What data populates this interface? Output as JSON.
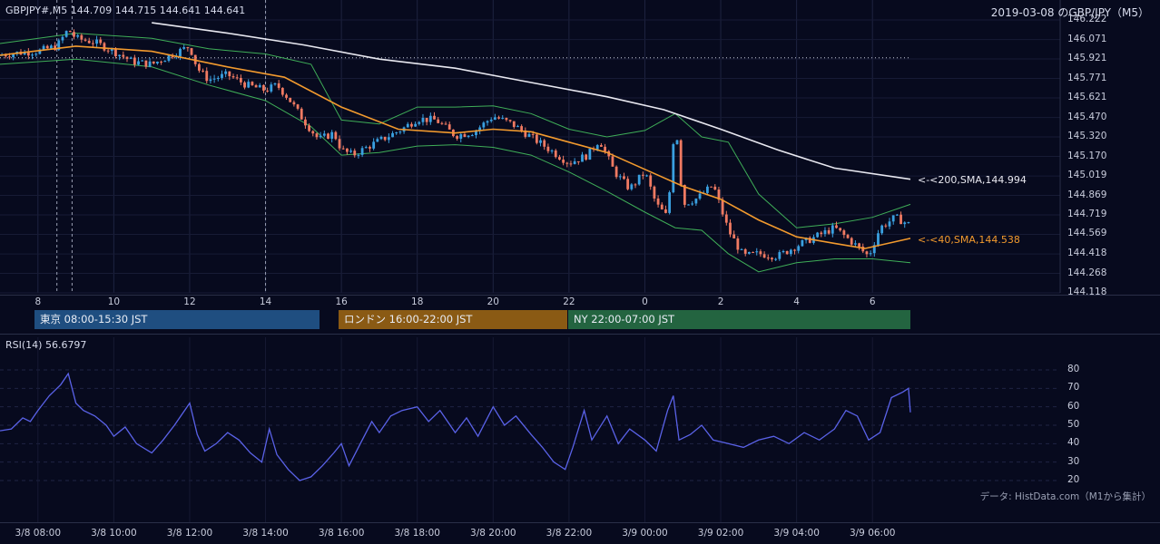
{
  "header": {
    "symbol_info": "GBPJPY#,M5 144.709 144.715 144.641 144.641",
    "title_right": "2019-03-08 のGBP/JPY（M5）"
  },
  "sessions": [
    {
      "label": "東京 08:00-15:30 JST",
      "color": "#1f4e80"
    },
    {
      "label": "ロンドン 16:00-22:00 JST",
      "color": "#8a5a14"
    },
    {
      "label": "NY 22:00-07:00 JST",
      "color": "#236440"
    }
  ],
  "rsi_panel": {
    "label": "RSI(14) 56.6797",
    "source": "データ: HistData.com（M1から集計）"
  },
  "indicator_labels": {
    "sma200": "<-<200,SMA,144.994",
    "sma40": "<-<40,SMA,144.538"
  },
  "colors": {
    "background": "#070a1e",
    "up_candle": "#3aa0e0",
    "down_candle": "#f07a62",
    "sma40": "#f29a2e",
    "sma200": "#e8e8f0",
    "bollinger": "#3fae58",
    "rsi": "#5a62e8"
  },
  "chart_data": [
    {
      "type": "candlestick",
      "title": "GBPJPY#,M5",
      "ylim": [
        144.118,
        146.222
      ],
      "y_ticks": [
        "146.222",
        "146.071",
        "145.921",
        "145.771",
        "145.621",
        "145.470",
        "145.320",
        "145.170",
        "145.019",
        "144.869",
        "144.719",
        "144.569",
        "144.418",
        "144.268",
        "144.118"
      ],
      "x_ticks": [
        "8",
        "10",
        "12",
        "14",
        "16",
        "18",
        "20",
        "22",
        "0",
        "2",
        "4",
        "6"
      ],
      "x_hours": [
        8,
        10,
        12,
        14,
        16,
        18,
        20,
        22,
        24,
        26,
        28,
        30
      ],
      "x_range_hours": [
        7.0,
        31.0
      ],
      "reference_price": 145.93,
      "last_ohlc": {
        "open": 144.709,
        "high": 144.715,
        "low": 144.641,
        "close": 144.641
      },
      "price_path": [
        [
          7.0,
          145.95
        ],
        [
          7.5,
          145.97
        ],
        [
          8.0,
          145.98
        ],
        [
          8.5,
          146.02
        ],
        [
          8.8,
          146.15
        ],
        [
          9.0,
          146.08
        ],
        [
          9.5,
          146.05
        ],
        [
          10.0,
          145.98
        ],
        [
          10.5,
          145.9
        ],
        [
          11.0,
          145.88
        ],
        [
          11.5,
          145.95
        ],
        [
          12.0,
          146.02
        ],
        [
          12.2,
          145.85
        ],
        [
          12.5,
          145.76
        ],
        [
          13.0,
          145.8
        ],
        [
          13.5,
          145.72
        ],
        [
          14.0,
          145.68
        ],
        [
          14.3,
          145.72
        ],
        [
          14.6,
          145.62
        ],
        [
          15.0,
          145.45
        ],
        [
          15.4,
          145.3
        ],
        [
          15.8,
          145.35
        ],
        [
          16.0,
          145.22
        ],
        [
          16.3,
          145.18
        ],
        [
          16.8,
          145.26
        ],
        [
          17.2,
          145.32
        ],
        [
          17.6,
          145.38
        ],
        [
          18.0,
          145.46
        ],
        [
          18.5,
          145.45
        ],
        [
          19.0,
          145.33
        ],
        [
          19.5,
          145.36
        ],
        [
          20.0,
          145.48
        ],
        [
          20.5,
          145.42
        ],
        [
          21.0,
          145.32
        ],
        [
          21.5,
          145.22
        ],
        [
          22.0,
          145.12
        ],
        [
          22.5,
          145.18
        ],
        [
          22.8,
          145.3
        ],
        [
          23.2,
          145.05
        ],
        [
          23.6,
          144.92
        ],
        [
          24.0,
          145.05
        ],
        [
          24.3,
          144.8
        ],
        [
          24.6,
          144.7
        ],
        [
          24.8,
          145.48
        ],
        [
          25.0,
          144.8
        ],
        [
          25.4,
          144.85
        ],
        [
          25.8,
          144.95
        ],
        [
          26.2,
          144.6
        ],
        [
          26.6,
          144.4
        ],
        [
          27.0,
          144.42
        ],
        [
          27.5,
          144.4
        ],
        [
          28.0,
          144.48
        ],
        [
          28.5,
          144.55
        ],
        [
          29.0,
          144.62
        ],
        [
          29.5,
          144.5
        ],
        [
          29.9,
          144.4
        ],
        [
          30.2,
          144.62
        ],
        [
          30.6,
          144.7
        ],
        [
          31.0,
          144.64
        ]
      ],
      "sma40_path": [
        [
          7.0,
          145.95
        ],
        [
          9.0,
          146.02
        ],
        [
          11.0,
          145.98
        ],
        [
          13.0,
          145.86
        ],
        [
          14.5,
          145.78
        ],
        [
          16.0,
          145.55
        ],
        [
          17.5,
          145.38
        ],
        [
          19.0,
          145.35
        ],
        [
          20.0,
          145.38
        ],
        [
          21.0,
          145.36
        ],
        [
          22.0,
          145.28
        ],
        [
          23.0,
          145.2
        ],
        [
          24.0,
          145.07
        ],
        [
          25.0,
          144.94
        ],
        [
          26.0,
          144.84
        ],
        [
          27.0,
          144.68
        ],
        [
          28.0,
          144.55
        ],
        [
          29.0,
          144.5
        ],
        [
          29.8,
          144.46
        ],
        [
          31.0,
          144.538
        ]
      ],
      "sma200_path": [
        [
          11.0,
          146.2
        ],
        [
          13.0,
          146.12
        ],
        [
          15.0,
          146.03
        ],
        [
          17.0,
          145.92
        ],
        [
          19.0,
          145.85
        ],
        [
          21.0,
          145.74
        ],
        [
          23.0,
          145.63
        ],
        [
          24.5,
          145.53
        ],
        [
          26.0,
          145.38
        ],
        [
          27.5,
          145.22
        ],
        [
          29.0,
          145.08
        ],
        [
          31.0,
          144.994
        ]
      ],
      "bb_upper_path": [
        [
          7.0,
          146.04
        ],
        [
          9.0,
          146.12
        ],
        [
          11.0,
          146.08
        ],
        [
          12.5,
          146.0
        ],
        [
          14.0,
          145.96
        ],
        [
          15.2,
          145.88
        ],
        [
          16.0,
          145.45
        ],
        [
          17.0,
          145.42
        ],
        [
          18.0,
          145.55
        ],
        [
          19.0,
          145.55
        ],
        [
          20.0,
          145.56
        ],
        [
          21.0,
          145.5
        ],
        [
          22.0,
          145.38
        ],
        [
          23.0,
          145.32
        ],
        [
          24.0,
          145.37
        ],
        [
          24.8,
          145.5
        ],
        [
          25.5,
          145.32
        ],
        [
          26.2,
          145.28
        ],
        [
          27.0,
          144.88
        ],
        [
          28.0,
          144.62
        ],
        [
          29.0,
          144.65
        ],
        [
          30.0,
          144.7
        ],
        [
          31.0,
          144.8
        ]
      ],
      "bb_lower_path": [
        [
          7.0,
          145.88
        ],
        [
          9.0,
          145.92
        ],
        [
          11.0,
          145.86
        ],
        [
          12.5,
          145.72
        ],
        [
          14.0,
          145.6
        ],
        [
          15.2,
          145.4
        ],
        [
          16.0,
          145.18
        ],
        [
          17.0,
          145.2
        ],
        [
          18.0,
          145.25
        ],
        [
          19.0,
          145.26
        ],
        [
          20.0,
          145.24
        ],
        [
          21.0,
          145.18
        ],
        [
          22.0,
          145.05
        ],
        [
          23.0,
          144.9
        ],
        [
          24.0,
          144.74
        ],
        [
          24.8,
          144.62
        ],
        [
          25.5,
          144.6
        ],
        [
          26.2,
          144.42
        ],
        [
          27.0,
          144.28
        ],
        [
          28.0,
          144.35
        ],
        [
          29.0,
          144.38
        ],
        [
          30.0,
          144.38
        ],
        [
          31.0,
          144.35
        ]
      ],
      "vertical_markers_hours": [
        8.5,
        8.9,
        14.0
      ]
    },
    {
      "type": "line",
      "title": "RSI(14)",
      "ylim": [
        15,
        85
      ],
      "y_ticks": [
        "80",
        "70",
        "60",
        "50",
        "40",
        "30",
        "20"
      ],
      "x_ticks": [
        "3/8 08:00",
        "3/8 10:00",
        "3/8 12:00",
        "3/8 14:00",
        "3/8 16:00",
        "3/8 18:00",
        "3/8 20:00",
        "3/8 22:00",
        "3/9 00:00",
        "3/9 02:00",
        "3/9 04:00",
        "3/9 06:00"
      ],
      "x_hours": [
        8,
        10,
        12,
        14,
        16,
        18,
        20,
        22,
        24,
        26,
        28,
        30
      ],
      "x_range_hours": [
        7.0,
        31.0
      ],
      "last_value": 56.6797,
      "values": [
        [
          7.0,
          47
        ],
        [
          7.3,
          48
        ],
        [
          7.6,
          54
        ],
        [
          7.8,
          52
        ],
        [
          8.0,
          58
        ],
        [
          8.3,
          66
        ],
        [
          8.6,
          72
        ],
        [
          8.8,
          78
        ],
        [
          9.0,
          62
        ],
        [
          9.2,
          58
        ],
        [
          9.5,
          55
        ],
        [
          9.8,
          50
        ],
        [
          10.0,
          44
        ],
        [
          10.3,
          49
        ],
        [
          10.6,
          40
        ],
        [
          11.0,
          35
        ],
        [
          11.3,
          42
        ],
        [
          11.6,
          50
        ],
        [
          12.0,
          62
        ],
        [
          12.2,
          45
        ],
        [
          12.4,
          36
        ],
        [
          12.7,
          40
        ],
        [
          13.0,
          46
        ],
        [
          13.3,
          42
        ],
        [
          13.6,
          35
        ],
        [
          13.9,
          30
        ],
        [
          14.1,
          48
        ],
        [
          14.3,
          34
        ],
        [
          14.6,
          26
        ],
        [
          14.9,
          20
        ],
        [
          15.2,
          22
        ],
        [
          15.5,
          28
        ],
        [
          15.8,
          35
        ],
        [
          16.0,
          40
        ],
        [
          16.2,
          28
        ],
        [
          16.5,
          40
        ],
        [
          16.8,
          52
        ],
        [
          17.0,
          46
        ],
        [
          17.3,
          55
        ],
        [
          17.6,
          58
        ],
        [
          18.0,
          60
        ],
        [
          18.3,
          52
        ],
        [
          18.6,
          58
        ],
        [
          19.0,
          46
        ],
        [
          19.3,
          54
        ],
        [
          19.6,
          44
        ],
        [
          20.0,
          60
        ],
        [
          20.3,
          50
        ],
        [
          20.6,
          55
        ],
        [
          21.0,
          45
        ],
        [
          21.3,
          38
        ],
        [
          21.6,
          30
        ],
        [
          21.9,
          26
        ],
        [
          22.1,
          38
        ],
        [
          22.4,
          58
        ],
        [
          22.6,
          42
        ],
        [
          23.0,
          55
        ],
        [
          23.3,
          40
        ],
        [
          23.6,
          48
        ],
        [
          24.0,
          42
        ],
        [
          24.3,
          36
        ],
        [
          24.6,
          58
        ],
        [
          24.75,
          66
        ],
        [
          24.9,
          42
        ],
        [
          25.2,
          45
        ],
        [
          25.5,
          50
        ],
        [
          25.8,
          42
        ],
        [
          26.2,
          40
        ],
        [
          26.6,
          38
        ],
        [
          27.0,
          42
        ],
        [
          27.4,
          44
        ],
        [
          27.8,
          40
        ],
        [
          28.2,
          46
        ],
        [
          28.6,
          42
        ],
        [
          29.0,
          48
        ],
        [
          29.3,
          58
        ],
        [
          29.6,
          55
        ],
        [
          29.9,
          42
        ],
        [
          30.2,
          46
        ],
        [
          30.5,
          65
        ],
        [
          30.8,
          68
        ],
        [
          30.95,
          70
        ],
        [
          31.0,
          57
        ]
      ]
    }
  ]
}
